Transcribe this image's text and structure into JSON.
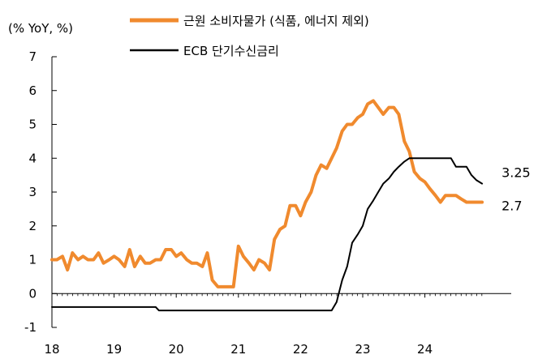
{
  "chart_data": {
    "type": "line",
    "unit_label": "(% YoY, %)",
    "ylim": [
      -1,
      7
    ],
    "y_ticks": [
      -1,
      0,
      1,
      2,
      3,
      4,
      5,
      6,
      7
    ],
    "xlim": [
      2018,
      2025
    ],
    "x_ticks": [
      {
        "x": 2018,
        "label": "18"
      },
      {
        "x": 2019,
        "label": "19"
      },
      {
        "x": 2020,
        "label": "20"
      },
      {
        "x": 2021,
        "label": "21"
      },
      {
        "x": 2022,
        "label": "22"
      },
      {
        "x": 2023,
        "label": "23"
      },
      {
        "x": 2024,
        "label": "24"
      }
    ],
    "grid": false,
    "legend_position": "top-right",
    "series": [
      {
        "name": "근원 소비자물가 (식품, 에너지 제외)",
        "color": "#F08A2E",
        "end_label": "2.7",
        "points": [
          [
            2018.0,
            1.0
          ],
          [
            2018.08,
            1.0
          ],
          [
            2018.17,
            1.1
          ],
          [
            2018.25,
            0.7
          ],
          [
            2018.33,
            1.2
          ],
          [
            2018.42,
            1.0
          ],
          [
            2018.5,
            1.1
          ],
          [
            2018.58,
            1.0
          ],
          [
            2018.67,
            1.0
          ],
          [
            2018.75,
            1.2
          ],
          [
            2018.83,
            0.9
          ],
          [
            2018.92,
            1.0
          ],
          [
            2019.0,
            1.1
          ],
          [
            2019.08,
            1.0
          ],
          [
            2019.17,
            0.8
          ],
          [
            2019.25,
            1.3
          ],
          [
            2019.33,
            0.8
          ],
          [
            2019.42,
            1.1
          ],
          [
            2019.5,
            0.9
          ],
          [
            2019.58,
            0.9
          ],
          [
            2019.67,
            1.0
          ],
          [
            2019.75,
            1.0
          ],
          [
            2019.83,
            1.3
          ],
          [
            2019.92,
            1.3
          ],
          [
            2020.0,
            1.1
          ],
          [
            2020.08,
            1.2
          ],
          [
            2020.17,
            1.0
          ],
          [
            2020.25,
            0.9
          ],
          [
            2020.33,
            0.9
          ],
          [
            2020.42,
            0.8
          ],
          [
            2020.5,
            1.2
          ],
          [
            2020.58,
            0.4
          ],
          [
            2020.67,
            0.2
          ],
          [
            2020.75,
            0.2
          ],
          [
            2020.83,
            0.2
          ],
          [
            2020.92,
            0.2
          ],
          [
            2021.0,
            1.4
          ],
          [
            2021.08,
            1.1
          ],
          [
            2021.17,
            0.9
          ],
          [
            2021.25,
            0.7
          ],
          [
            2021.33,
            1.0
          ],
          [
            2021.42,
            0.9
          ],
          [
            2021.5,
            0.7
          ],
          [
            2021.58,
            1.6
          ],
          [
            2021.67,
            1.9
          ],
          [
            2021.75,
            2.0
          ],
          [
            2021.83,
            2.6
          ],
          [
            2021.92,
            2.6
          ],
          [
            2022.0,
            2.3
          ],
          [
            2022.08,
            2.7
          ],
          [
            2022.17,
            3.0
          ],
          [
            2022.25,
            3.5
          ],
          [
            2022.33,
            3.8
          ],
          [
            2022.42,
            3.7
          ],
          [
            2022.5,
            4.0
          ],
          [
            2022.58,
            4.3
          ],
          [
            2022.67,
            4.8
          ],
          [
            2022.75,
            5.0
          ],
          [
            2022.83,
            5.0
          ],
          [
            2022.92,
            5.2
          ],
          [
            2023.0,
            5.3
          ],
          [
            2023.08,
            5.6
          ],
          [
            2023.17,
            5.7
          ],
          [
            2023.25,
            5.5
          ],
          [
            2023.33,
            5.3
          ],
          [
            2023.42,
            5.5
          ],
          [
            2023.5,
            5.5
          ],
          [
            2023.58,
            5.3
          ],
          [
            2023.67,
            4.5
          ],
          [
            2023.75,
            4.2
          ],
          [
            2023.83,
            3.6
          ],
          [
            2023.92,
            3.4
          ],
          [
            2024.0,
            3.3
          ],
          [
            2024.08,
            3.1
          ],
          [
            2024.17,
            2.9
          ],
          [
            2024.25,
            2.7
          ],
          [
            2024.33,
            2.9
          ],
          [
            2024.42,
            2.9
          ],
          [
            2024.5,
            2.9
          ],
          [
            2024.58,
            2.8
          ],
          [
            2024.67,
            2.7
          ],
          [
            2024.75,
            2.7
          ],
          [
            2024.83,
            2.7
          ],
          [
            2024.92,
            2.7
          ]
        ]
      },
      {
        "name": "ECB 단기수신금리",
        "color": "#000000",
        "end_label": "3.25",
        "points": [
          [
            2018.0,
            -0.4
          ],
          [
            2019.67,
            -0.4
          ],
          [
            2019.72,
            -0.5
          ],
          [
            2022.5,
            -0.5
          ],
          [
            2022.58,
            -0.25
          ],
          [
            2022.67,
            0.4
          ],
          [
            2022.75,
            0.8
          ],
          [
            2022.83,
            1.5
          ],
          [
            2022.92,
            1.75
          ],
          [
            2023.0,
            2.0
          ],
          [
            2023.08,
            2.5
          ],
          [
            2023.17,
            2.75
          ],
          [
            2023.25,
            3.0
          ],
          [
            2023.33,
            3.25
          ],
          [
            2023.42,
            3.4
          ],
          [
            2023.5,
            3.6
          ],
          [
            2023.58,
            3.75
          ],
          [
            2023.67,
            3.9
          ],
          [
            2023.75,
            4.0
          ],
          [
            2024.42,
            4.0
          ],
          [
            2024.5,
            3.75
          ],
          [
            2024.67,
            3.75
          ],
          [
            2024.75,
            3.5
          ],
          [
            2024.83,
            3.35
          ],
          [
            2024.92,
            3.25
          ]
        ]
      }
    ]
  }
}
